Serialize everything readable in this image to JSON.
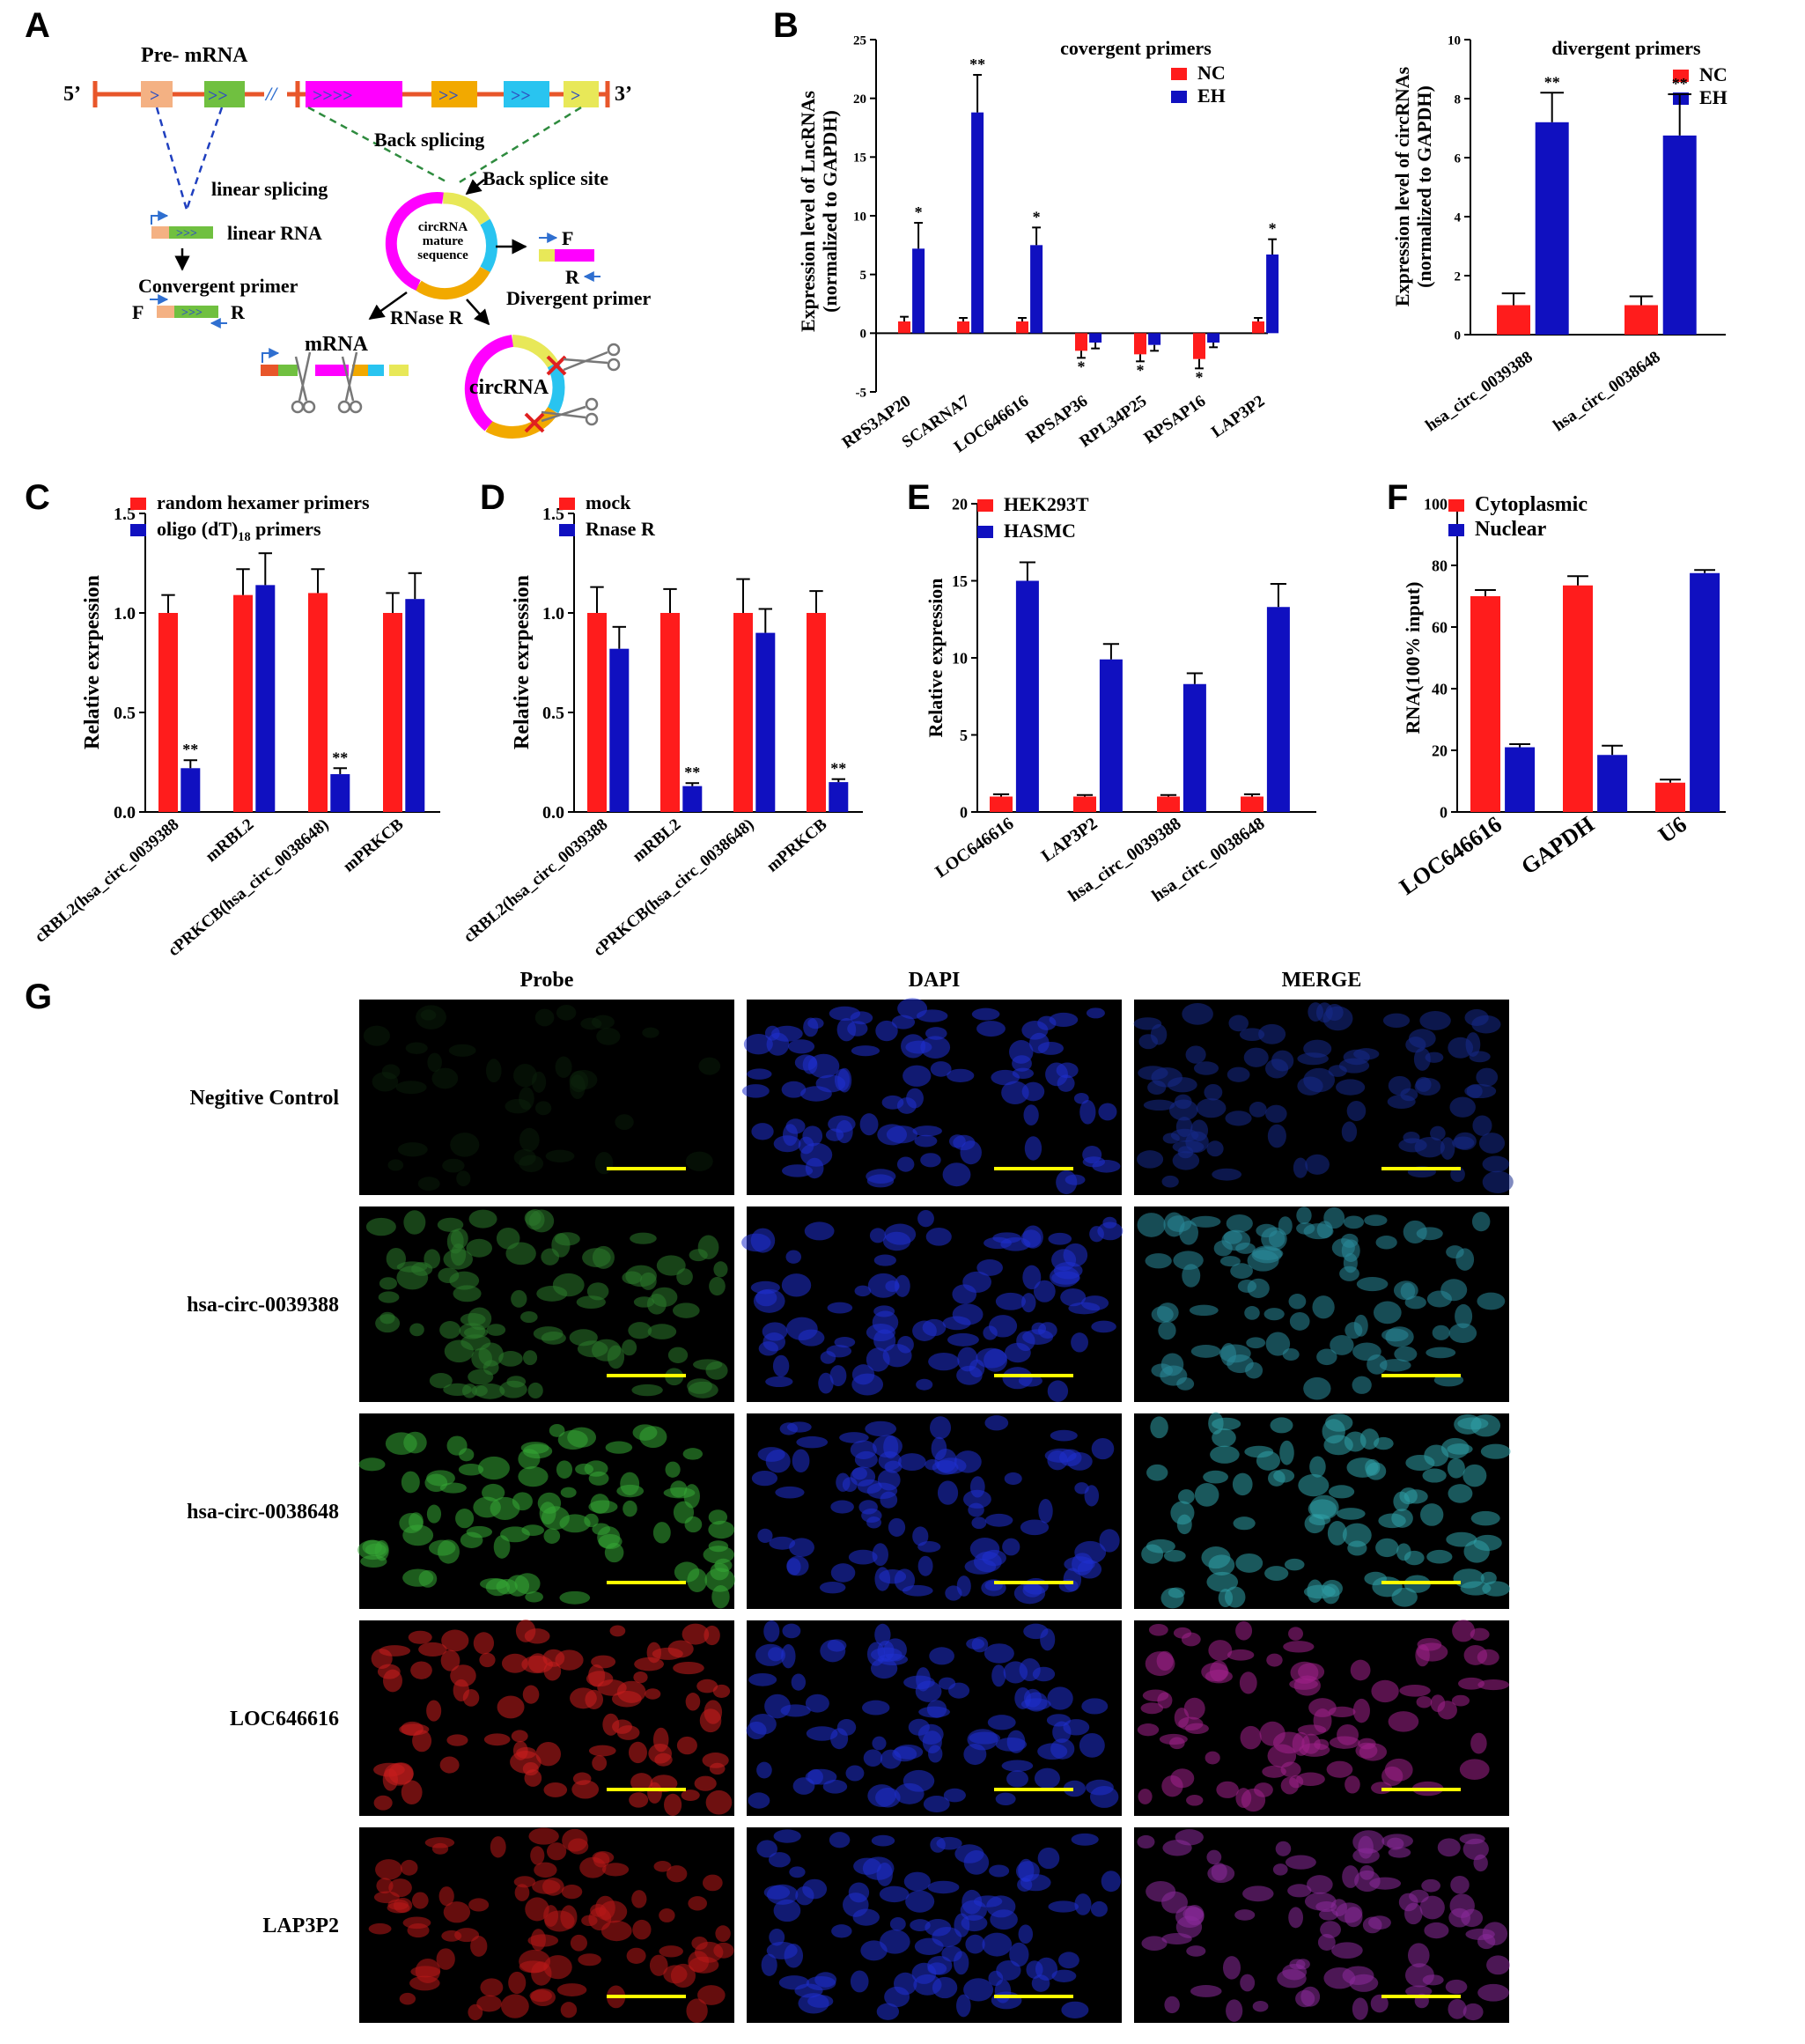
{
  "panel_letters": {
    "a": "A",
    "b": "B",
    "c": "C",
    "d": "D",
    "e": "E",
    "f": "F",
    "g": "G"
  },
  "schematic": {
    "pre_mrna": "Pre- mRNA",
    "five_prime": "5’",
    "three_prime": "3’",
    "break_mark": "//",
    "back_splicing": "Back splicing",
    "back_splice_site": "Back splice site",
    "linear_splicing": "linear splicing",
    "linear_rna": "linear RNA",
    "convergent_primer": "Convergent primer",
    "divergent_primer": "Divergent primer",
    "circ_center_1": "circRNA",
    "circ_center_2": "mature",
    "circ_center_3": "sequence",
    "rnase_r": "RNase R",
    "mrna": "mRNA",
    "circrna": "circRNA",
    "primer_f": "F",
    "primer_r": "R",
    "exon_arrows_1": ">",
    "exon_arrows_2": ">>",
    "exon_arrows_4": ">>>>",
    "exon_arrows_3": ">>>",
    "colors": {
      "backbone": "#e8562a",
      "exon1": "#f4b183",
      "exon2": "#70c040",
      "exon3": "#ff00ff",
      "exon4": "#f2a900",
      "exon5": "#29c4f0",
      "exon6": "#e8e858",
      "blue_dash": "#1f3fbf",
      "green_dash": "#2e8b3e"
    }
  },
  "chart_data": [
    {
      "id": "B1",
      "type": "bar",
      "title": "covergent primers",
      "ylabel_1": "Expression level of LncRNAs",
      "ylabel_2": "(normalized to GAPDH)",
      "categories": [
        "RPS3AP20",
        "SCARNA7",
        "LOC646616",
        "RPSAP36",
        "RPL34P25",
        "RPSAP16",
        "LAP3P2"
      ],
      "series": [
        {
          "name": "NC",
          "color": "#ff1c1c",
          "values": [
            1,
            1,
            1,
            -1.5,
            -1.8,
            -2.2,
            1
          ],
          "errors": [
            0.4,
            0.3,
            0.3,
            0.6,
            0.6,
            0.8,
            0.3
          ]
        },
        {
          "name": "EH",
          "color": "#1010c0",
          "values": [
            7.2,
            18.8,
            7.5,
            -0.8,
            -1,
            -0.8,
            6.7
          ],
          "errors": [
            2.2,
            3.2,
            1.5,
            0.5,
            0.5,
            0.4,
            1.3
          ]
        }
      ],
      "significance": [
        "*",
        "**",
        "*",
        "*",
        "*",
        "*",
        "*"
      ],
      "significance_series": [
        1,
        1,
        1,
        0,
        0,
        0,
        1
      ],
      "ylim": [
        -5,
        25
      ],
      "yticks": [
        "-5",
        "0",
        "5",
        "10",
        "15",
        "20",
        "25"
      ],
      "ytick_values": [
        -5,
        0,
        5,
        10,
        15,
        20,
        25
      ]
    },
    {
      "id": "B2",
      "type": "bar",
      "title": "divergent primers",
      "ylabel_1": "Expression level of circRNAs",
      "ylabel_2": "(normalized to GAPDH)",
      "categories": [
        "hsa_circ_0039388",
        "hsa_circ_0038648"
      ],
      "series": [
        {
          "name": "NC",
          "color": "#ff1c1c",
          "values": [
            1,
            1
          ],
          "errors": [
            0.4,
            0.3
          ]
        },
        {
          "name": "EH",
          "color": "#1010c0",
          "values": [
            7.2,
            6.75
          ],
          "errors": [
            1,
            1.4
          ]
        }
      ],
      "significance": [
        "**",
        "**"
      ],
      "significance_series": [
        1,
        1
      ],
      "ylim": [
        0,
        10
      ],
      "yticks": [
        "0",
        "2",
        "4",
        "6",
        "8",
        "10"
      ],
      "ytick_values": [
        0,
        2,
        4,
        6,
        8,
        10
      ]
    },
    {
      "id": "C",
      "type": "bar",
      "ylabel_1": "Relative exrpession",
      "categories": [
        "cRBL2(hsa_circ_0039388",
        "mRBL2",
        "cPRKCB(hsa_circ_0038648)",
        "mPRKCB"
      ],
      "series": [
        {
          "name": "random hexamer primers",
          "color": "#ff1c1c",
          "values": [
            1,
            1.09,
            1.1,
            1
          ],
          "errors": [
            0.09,
            0.13,
            0.12,
            0.1
          ]
        },
        {
          "name": "oligo (dT)18 primers",
          "name_main": "oligo (dT)",
          "name_sub": "18",
          "name_tail": " primers",
          "color": "#1010c0",
          "values": [
            0.22,
            1.14,
            0.19,
            1.07
          ],
          "errors": [
            0.04,
            0.16,
            0.03,
            0.13
          ]
        }
      ],
      "significance": [
        "**",
        "",
        "**",
        ""
      ],
      "significance_series": [
        1,
        1,
        1,
        1
      ],
      "ylim": [
        0,
        1.5
      ],
      "yticks": [
        "0.0",
        "0.5",
        "1.0",
        "1.5"
      ],
      "ytick_values": [
        0,
        0.5,
        1,
        1.5
      ]
    },
    {
      "id": "D",
      "type": "bar",
      "ylabel_1": "Relative exrpession",
      "categories": [
        "cRBL2(hsa_circ_0039388",
        "mRBL2",
        "cPRKCB(hsa_circ_0038648)",
        "mPRKCB"
      ],
      "series": [
        {
          "name": "mock",
          "color": "#ff1c1c",
          "values": [
            1,
            1,
            1,
            1
          ],
          "errors": [
            0.13,
            0.12,
            0.17,
            0.11
          ]
        },
        {
          "name": "Rnase R",
          "color": "#1010c0",
          "values": [
            0.82,
            0.13,
            0.9,
            0.15
          ],
          "errors": [
            0.11,
            0.015,
            0.12,
            0.015
          ]
        }
      ],
      "significance": [
        "",
        "**",
        "",
        "**"
      ],
      "significance_series": [
        1,
        1,
        1,
        1
      ],
      "ylim": [
        0,
        1.5
      ],
      "yticks": [
        "0.0",
        "0.5",
        "1.0",
        "1.5"
      ],
      "ytick_values": [
        0,
        0.5,
        1,
        1.5
      ]
    },
    {
      "id": "E",
      "type": "bar",
      "ylabel_1": "Relative expression",
      "categories": [
        "LOC646616",
        "LAP3P2",
        "hsa_circ_0039388",
        "hsa_circ_0038648"
      ],
      "series": [
        {
          "name": "HEK293T",
          "color": "#ff1c1c",
          "values": [
            1,
            1,
            1,
            1
          ],
          "errors": [
            0.15,
            0.1,
            0.1,
            0.15
          ]
        },
        {
          "name": "HASMC",
          "color": "#1010c0",
          "values": [
            15,
            9.9,
            8.3,
            13.3
          ],
          "errors": [
            1.2,
            1,
            0.7,
            1.5
          ]
        }
      ],
      "significance": [
        "",
        "",
        "",
        ""
      ],
      "significance_series": [
        1,
        1,
        1,
        1
      ],
      "ylim": [
        0,
        20
      ],
      "yticks": [
        "0",
        "5",
        "10",
        "15",
        "20"
      ],
      "ytick_values": [
        0,
        5,
        10,
        15,
        20
      ]
    },
    {
      "id": "F",
      "type": "bar",
      "ylabel_1": "RNA(100% input)",
      "categories": [
        "LOC646616",
        "GAPDH",
        "U6"
      ],
      "series": [
        {
          "name": "Cytoplasmic",
          "color": "#ff1c1c",
          "values": [
            70,
            73.5,
            9.5
          ],
          "errors": [
            2,
            3,
            1
          ]
        },
        {
          "name": "Nuclear",
          "color": "#1010c0",
          "values": [
            21,
            18.5,
            77.5
          ],
          "errors": [
            1,
            3,
            1
          ]
        }
      ],
      "significance": [
        "",
        "",
        ""
      ],
      "significance_series": [
        1,
        1,
        1
      ],
      "ylim": [
        0,
        100
      ],
      "yticks": [
        "0",
        "20",
        "40",
        "60",
        "80",
        "100"
      ],
      "ytick_values": [
        0,
        20,
        40,
        60,
        80,
        100
      ]
    }
  ],
  "micrographs": {
    "columns": [
      "Probe",
      "DAPI",
      "MERGE"
    ],
    "rows": [
      "Negitive Control",
      "hsa-circ-0039388",
      "hsa-circ-0038648",
      "LOC646616",
      "LAP3P2"
    ],
    "probe_colors": [
      "#0d2a0d",
      "#2c7a2c",
      "#35a835",
      "#c81e1e",
      "#b81818"
    ],
    "dapi_color": "#1f2fd0",
    "merge_colors": [
      "#152a8a",
      "#2a8a9a",
      "#30a0a8",
      "#a0208a",
      "#8a2a9a"
    ],
    "scalebar_color": "#ffff00"
  }
}
